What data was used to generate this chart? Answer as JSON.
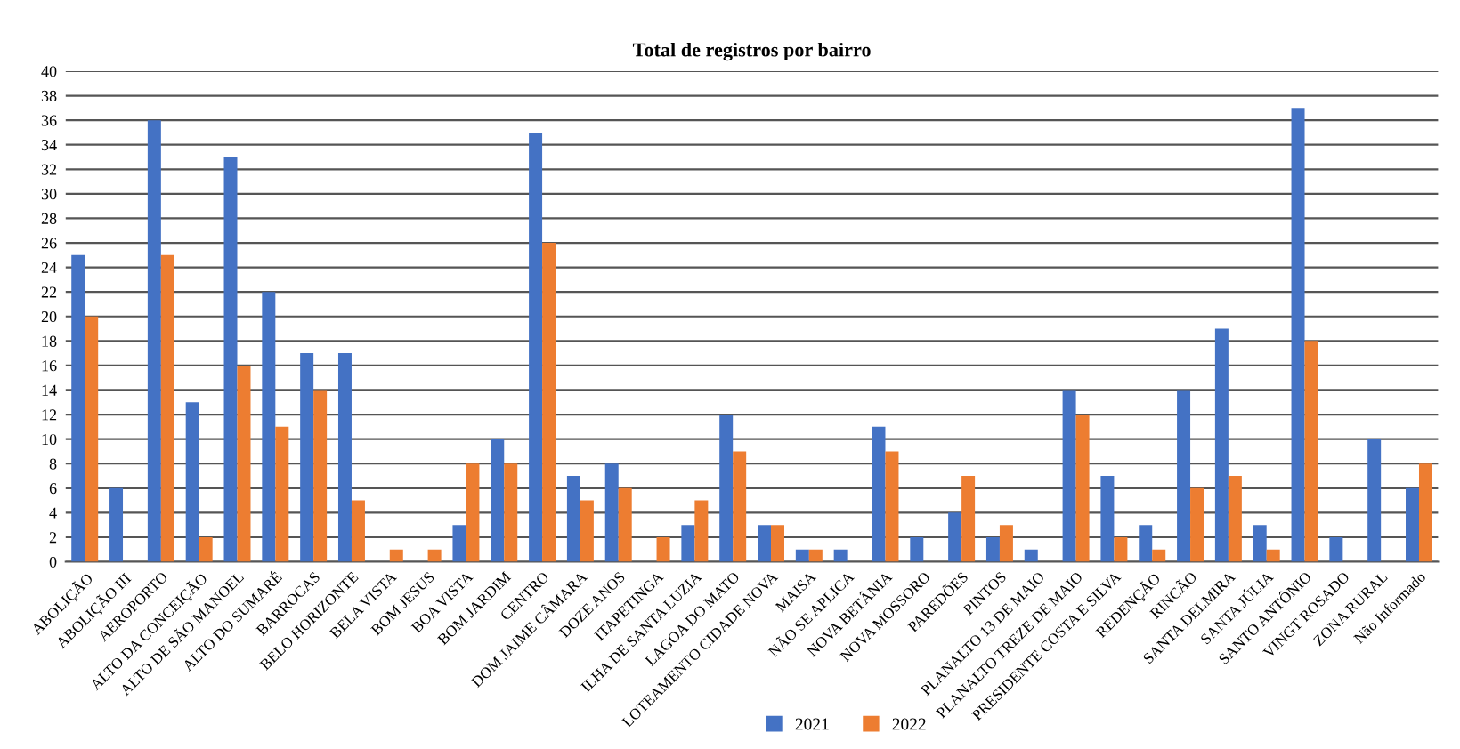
{
  "chart_data": {
    "type": "bar",
    "title": "Total de registros por bairro",
    "categories": [
      "ABOLIÇÃO",
      "ABOLIÇÃO III",
      "AEROPORTO",
      "ALTO DA CONCEIÇÃO",
      "ALTO DE SÃO MANOEL",
      "ALTO DO SUMARÉ",
      "BARROCAS",
      "BELO HORIZONTE",
      "BELA VISTA",
      "BOM JESUS",
      "BOA VISTA",
      "BOM JARDIM",
      "CENTRO",
      "DOM JAIME CÂMARA",
      "DOZE ANOS",
      "ITAPETINGA",
      "ILHA DE SANTA LUZIA",
      "LAGOA DO MATO",
      "LOTEAMENTO CIDADE NOVA",
      "MAISA",
      "NÃO SE APLICA",
      "NOVA BETÂNIA",
      "NOVA MOSSORO",
      "PAREDÕES",
      "PINTOS",
      "PLANALTO 13 DE MAIO",
      "PLANALTO TREZE DE MAIO",
      "PRESIDENTE COSTA E SILVA",
      "REDENÇÃO",
      "RINCÃO",
      "SANTA DELMIRA",
      "SANTA JÚLIA",
      "SANTO ANTÔNIO",
      "VINGT ROSADO",
      "ZONA RURAL",
      "Não Informado"
    ],
    "series": [
      {
        "name": "2021",
        "color": "#4472c4",
        "values": [
          25,
          6,
          36,
          13,
          33,
          22,
          17,
          17,
          0,
          0,
          3,
          10,
          35,
          7,
          8,
          0,
          3,
          12,
          3,
          1,
          1,
          11,
          2,
          4,
          2,
          1,
          14,
          7,
          3,
          14,
          19,
          3,
          37,
          2,
          10,
          6
        ]
      },
      {
        "name": "2022",
        "color": "#ed7d31",
        "values": [
          20,
          0,
          25,
          2,
          16,
          11,
          14,
          5,
          1,
          1,
          8,
          8,
          26,
          5,
          6,
          2,
          5,
          9,
          3,
          1,
          0,
          9,
          0,
          7,
          3,
          0,
          12,
          2,
          1,
          6,
          7,
          1,
          18,
          0,
          0,
          8
        ]
      }
    ],
    "ylim": [
      0,
      40
    ],
    "yticks": [
      0,
      2,
      4,
      6,
      8,
      10,
      12,
      14,
      16,
      18,
      20,
      22,
      24,
      26,
      28,
      30,
      32,
      34,
      36,
      38,
      40
    ],
    "grid": "y",
    "legend": "bottom"
  }
}
